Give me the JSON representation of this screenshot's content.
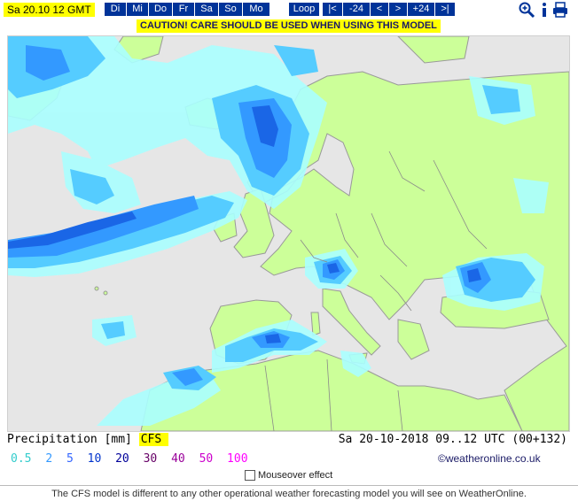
{
  "header": {
    "date_label": "Sa 20.10 12 GMT",
    "days": [
      "Di",
      "Mi",
      "Do",
      "Fr",
      "Sa",
      "So",
      "Mo"
    ],
    "nav": [
      "Loop",
      "|<",
      "-24",
      "<",
      ">",
      "+24",
      ">|"
    ],
    "icons": [
      "zoom-icon",
      "info-icon",
      "print-icon"
    ],
    "caution": "CAUTION! CARE SHOULD BE USED WHEN USING THIS MODEL"
  },
  "colors": {
    "sea": "#e6e6e6",
    "land": "#ccff99",
    "precip_light": "#aaffff",
    "precip_1": "#55ccff",
    "precip_2": "#3399ff",
    "precip_5": "#1a66e6",
    "precip_10": "#0033cc",
    "brand": "#003399",
    "highlight": "#ffff00"
  },
  "legend": {
    "param_label": "Precipitation [mm]",
    "model": "CFS",
    "values": [
      {
        "v": "0.5",
        "color": "#33cccc"
      },
      {
        "v": "2",
        "color": "#3399ff"
      },
      {
        "v": "5",
        "color": "#3366ff"
      },
      {
        "v": "10",
        "color": "#0033cc"
      },
      {
        "v": "20",
        "color": "#000099"
      },
      {
        "v": "30",
        "color": "#660066"
      },
      {
        "v": "40",
        "color": "#990099"
      },
      {
        "v": "50",
        "color": "#cc00cc"
      },
      {
        "v": "100",
        "color": "#ff00ff"
      }
    ]
  },
  "status": "Sa 20-10-2018 09..12 UTC (00+132)",
  "copyright": "©weatheronline.co.uk",
  "mouseover_label": "Mouseover effect",
  "footer": "The CFS model is different to any other operational weather forecasting model you will see on WeatherOnline."
}
